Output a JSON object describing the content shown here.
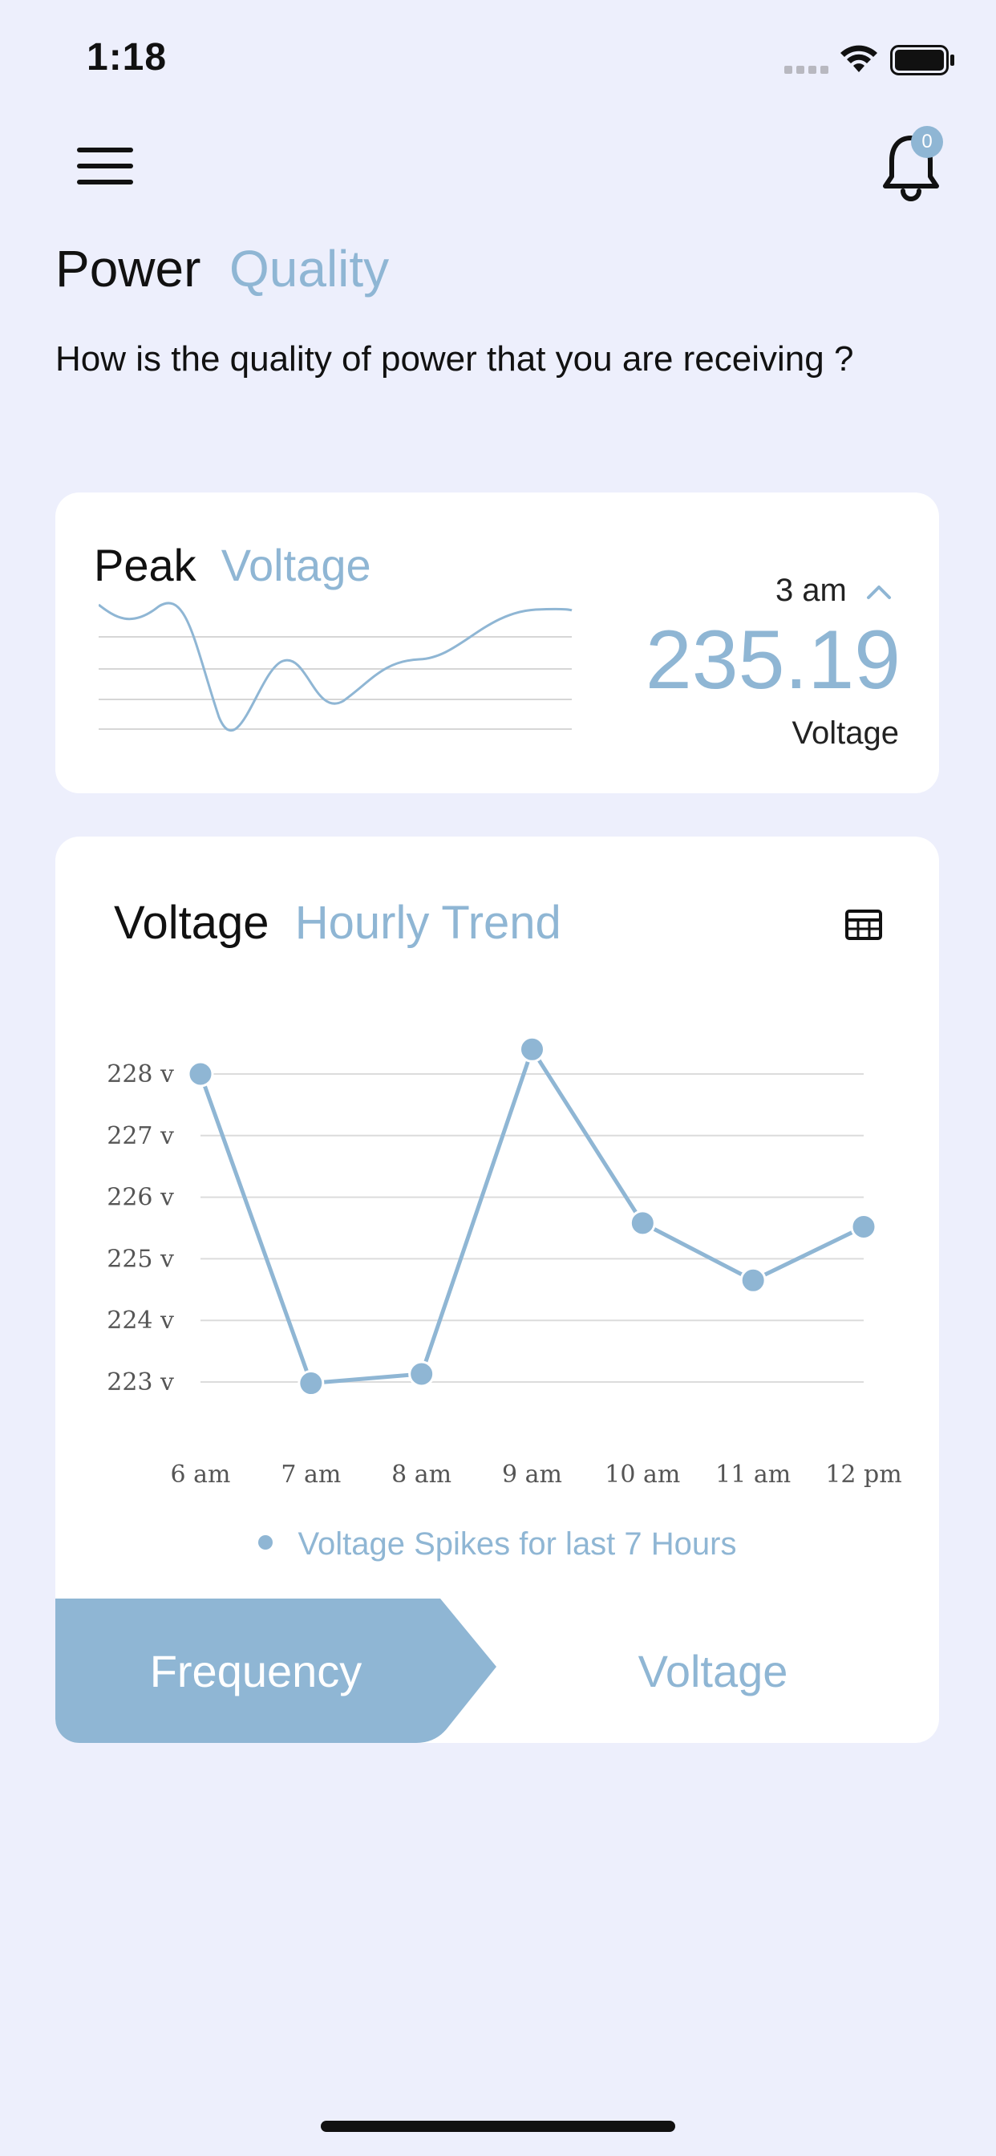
{
  "status": {
    "time": "1:18"
  },
  "header": {
    "notification_count": "0"
  },
  "page": {
    "title_primary": "Power",
    "title_accent": "Quality",
    "subtitle": "How is the quality of power that you are receiving ?"
  },
  "peak_card": {
    "title_primary": "Peak",
    "title_accent": "Voltage",
    "time": "3 am",
    "value": "235.19",
    "unit": "Voltage"
  },
  "trend_card": {
    "title_primary": "Voltage",
    "title_accent": "Hourly Trend",
    "legend": "Voltage Spikes for last 7 Hours"
  },
  "tabs": {
    "frequency": "Frequency",
    "voltage": "Voltage"
  },
  "colors": {
    "accent": "#8fb6d4",
    "background": "#edeffc",
    "card": "#ffffff"
  },
  "chart_data": {
    "type": "line",
    "title": "",
    "xlabel": "",
    "ylabel": "",
    "categories": [
      "6 am",
      "7 am",
      "8 am",
      "9 am",
      "10 am",
      "11 am",
      "12 pm"
    ],
    "y_ticks": [
      "223 v",
      "224 v",
      "225 v",
      "226 v",
      "227 v",
      "228 v"
    ],
    "ylim": [
      223,
      228
    ],
    "series": [
      {
        "name": "Voltage Spikes for last 7 Hours",
        "values": [
          228.0,
          222.98,
          223.13,
          228.4,
          225.58,
          224.65,
          225.52
        ]
      }
    ],
    "grid": true,
    "legend_position": "bottom"
  }
}
